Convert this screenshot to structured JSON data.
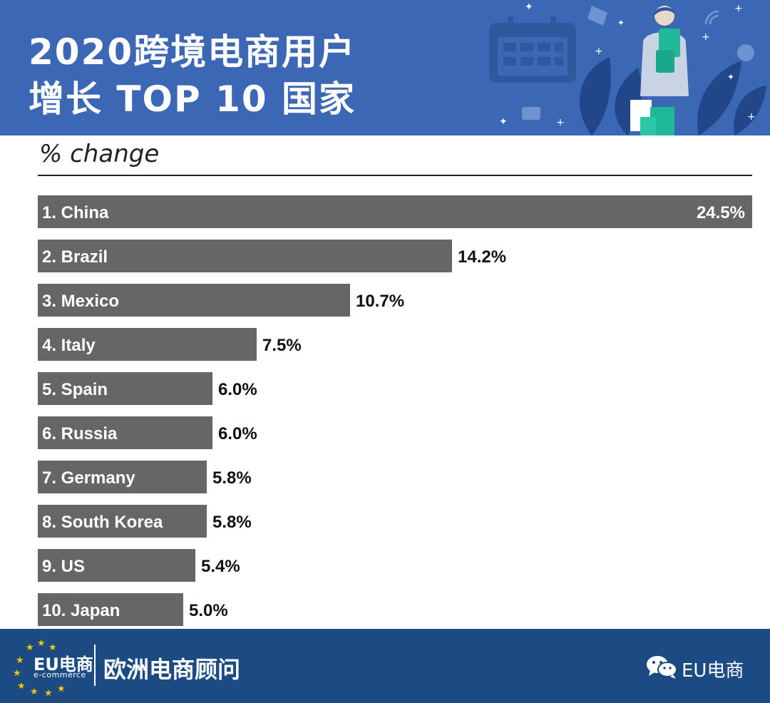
{
  "header": {
    "title_line1": "2020跨境电商用户",
    "title_line2": "增长 TOP 10 国家"
  },
  "chart_data": {
    "type": "bar",
    "orientation": "horizontal",
    "title": "2020跨境电商用户 增长 TOP 10 国家",
    "subtitle": "% change",
    "categories": [
      "1. China",
      "2. Brazil",
      "3. Mexico",
      "4. Italy",
      "5. Spain",
      "6. Russia",
      "7. Germany",
      "8. South Korea",
      "9. US",
      "10. Japan"
    ],
    "values": [
      24.5,
      14.2,
      10.7,
      7.5,
      6.0,
      6.0,
      5.8,
      5.8,
      5.4,
      5.0
    ],
    "value_labels": [
      "24.5%",
      "14.2%",
      "10.7%",
      "7.5%",
      "6.0%",
      "6.0%",
      "5.8%",
      "5.8%",
      "5.4%",
      "5.0%"
    ],
    "bar_color": "#666666",
    "xlim": [
      0,
      24.5
    ],
    "grid": false,
    "legend": "none"
  },
  "footer": {
    "logo_text": "EU电商",
    "logo_sub": "e-commerce",
    "brand": "欧洲电商顾问",
    "wechat_label": "EU电商",
    "wechat_icon": "wechat-icon"
  },
  "colors": {
    "header_bg": "#3b67b5",
    "footer_bg": "#1c4b83",
    "bar": "#666666",
    "star": "#f6c700"
  }
}
